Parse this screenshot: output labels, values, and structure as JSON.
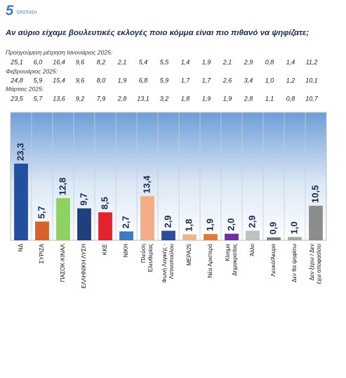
{
  "header": {
    "number": "5",
    "label": "ΕΡΩΤΗΣΗ",
    "question": "Αν αύριο είχαμε βουλευτικές εκλογές ποιο κόμμα είναι πιο πιθανό να ψηφίζατε;"
  },
  "previous": [
    {
      "label": "Προηγούμενη μέτρηση Ιανουάριος 2025:",
      "values": [
        "25,1",
        "6,0",
        "16,4",
        "9,6",
        "8,2",
        "2,1",
        "5,4",
        "5,5",
        "1,4",
        "1,9",
        "2,1",
        "2,9",
        "0,8",
        "1,4",
        "11,2"
      ]
    },
    {
      "label": "Φεβρουάριος 2025:",
      "values": [
        "24,8",
        "5,9",
        "15,4",
        "9,6",
        "8,0",
        "1,9",
        "6,8",
        "5,9",
        "1,7",
        "1,7",
        "2,6",
        "3,4",
        "1,0",
        "1,2",
        "10,1"
      ]
    },
    {
      "label": "Μάρτιος 2025:",
      "values": [
        "23,5",
        "5,7",
        "13,6",
        "9,2",
        "7,9",
        "2,8",
        "13,1",
        "3,2",
        "1,8",
        "1,9",
        "1,9",
        "2,8",
        "1,1",
        "0,8",
        "10,7"
      ]
    }
  ],
  "chart_data": {
    "type": "bar",
    "categories": [
      "ΝΔ",
      "ΣΥΡΙΖΑ",
      "ΠΑΣΟΚ-ΚΙΝΑΛ",
      "ΕΛΛΗΝΙΚΗ ΛΥΣΗ",
      "ΚΚΕ",
      "ΝΙΚΗ",
      "Πλεύση\nΕλευθερίας",
      "Φωνή Λογικής -\nΛατινοπούλου",
      "ΜΕΡΑ25",
      "Νέα Αριστερά",
      "Κίνημα\nΔημοκρατίας",
      "Άλλο",
      "Λευκό/Άκυρο",
      "Δεν θα ψηφίσω",
      "Δεν ξέρω / Δεν\nέχω αποφασίσει"
    ],
    "values": [
      23.3,
      5.7,
      12.8,
      9.7,
      8.5,
      2.7,
      13.4,
      2.9,
      1.8,
      1.9,
      2.0,
      2.9,
      0.9,
      1.0,
      10.5
    ],
    "value_labels": [
      "23,3",
      "5,7",
      "12,8",
      "9,7",
      "8,5",
      "2,7",
      "13,4",
      "2,9",
      "1,8",
      "1,9",
      "2,0",
      "2,9",
      "0,9",
      "1,0",
      "10,5"
    ],
    "colors": [
      "#22509e",
      "#d8622b",
      "#8fd163",
      "#203f7c",
      "#e5212b",
      "#3a7cc2",
      "#f3ae87",
      "#2c4e98",
      "#f5b487",
      "#e07a3a",
      "#7030a0",
      "#bfbfbf",
      "#7f7f7f",
      "#a6a6a6",
      "#8c8c8c"
    ],
    "ylim": [
      0,
      38
    ]
  }
}
